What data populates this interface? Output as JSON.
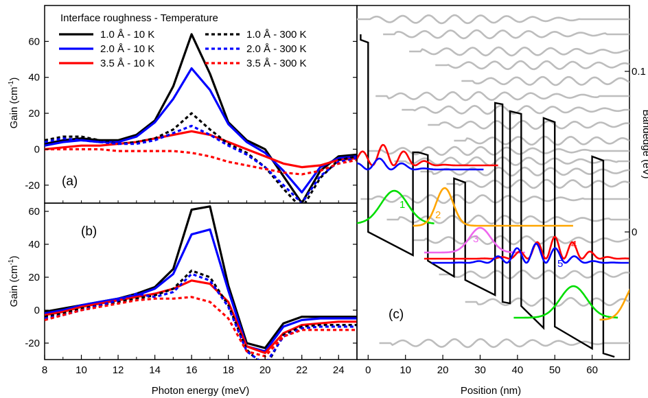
{
  "chart_data": [
    {
      "type": "line",
      "panel_label": "(a)",
      "xlabel": "",
      "ylabel": "Gain (cm<sup>-1</sup>)",
      "ylabel_text": "Gain (cm",
      "ylabel_sup": "-1",
      "ylabel_close": ")",
      "xlim": [
        8,
        25
      ],
      "ylim": [
        -30,
        80
      ],
      "yticks": [
        -20,
        0,
        20,
        40,
        60
      ],
      "legend_title": "Interface roughness - Temperature",
      "legend_placement": "top-left",
      "series": [
        {
          "name": "1.0 Å - 10 K",
          "color": "#000000",
          "dash": "solid",
          "x": [
            8,
            9,
            10,
            11,
            12,
            13,
            14,
            15,
            16,
            17,
            18,
            19,
            20,
            21,
            22,
            23,
            24,
            25
          ],
          "y": [
            3,
            5,
            6,
            5,
            5,
            8,
            16,
            35,
            64,
            42,
            15,
            5,
            0,
            -15,
            -30,
            -12,
            -4,
            -3
          ]
        },
        {
          "name": "2.0 Å - 10 K",
          "color": "#0000ff",
          "dash": "solid",
          "x": [
            8,
            9,
            10,
            11,
            12,
            13,
            14,
            15,
            16,
            17,
            18,
            19,
            20,
            21,
            22,
            23,
            24,
            25
          ],
          "y": [
            2,
            4,
            5,
            4,
            4,
            7,
            15,
            28,
            45,
            33,
            14,
            4,
            -2,
            -12,
            -24,
            -10,
            -5,
            -4
          ]
        },
        {
          "name": "3.5 Å - 10 K",
          "color": "#ff0000",
          "dash": "solid",
          "x": [
            8,
            9,
            10,
            11,
            12,
            13,
            14,
            15,
            16,
            17,
            18,
            19,
            20,
            21,
            22,
            23,
            24,
            25
          ],
          "y": [
            0,
            1,
            2,
            2,
            3,
            4,
            6,
            8,
            10,
            8,
            4,
            0,
            -4,
            -8,
            -10,
            -9,
            -6,
            -5
          ]
        },
        {
          "name": "1.0 Å - 300 K",
          "color": "#000000",
          "dash": "dashed",
          "x": [
            8,
            9,
            10,
            11,
            12,
            13,
            14,
            15,
            16,
            17,
            18,
            19,
            20,
            21,
            22,
            23,
            24,
            25
          ],
          "y": [
            5,
            7,
            7,
            5,
            3,
            4,
            6,
            11,
            20,
            11,
            3,
            -2,
            -10,
            -22,
            -33,
            -16,
            -6,
            -4
          ]
        },
        {
          "name": "2.0 Å - 300 K",
          "color": "#0000ff",
          "dash": "dashed",
          "x": [
            8,
            9,
            10,
            11,
            12,
            13,
            14,
            15,
            16,
            17,
            18,
            19,
            20,
            21,
            22,
            23,
            24,
            25
          ],
          "y": [
            4,
            6,
            5,
            4,
            3,
            3,
            5,
            9,
            13,
            8,
            2,
            -3,
            -10,
            -20,
            -30,
            -15,
            -7,
            -5
          ]
        },
        {
          "name": "3.5 Å - 300 K",
          "color": "#ff0000",
          "dash": "dashed",
          "x": [
            8,
            9,
            10,
            11,
            12,
            13,
            14,
            15,
            16,
            17,
            18,
            19,
            20,
            21,
            22,
            23,
            24,
            25
          ],
          "y": [
            0,
            0,
            0,
            0,
            -1,
            -1,
            -1,
            -1,
            -2,
            -4,
            -7,
            -9,
            -11,
            -13,
            -14,
            -12,
            -8,
            -6
          ]
        }
      ]
    },
    {
      "type": "line",
      "panel_label": "(b)",
      "xlabel": "Photon energy (meV)",
      "ylabel_text": "Gain (cm",
      "ylabel_sup": "-1",
      "ylabel_close": ")",
      "xlim": [
        8,
        25
      ],
      "xticks": [
        8,
        10,
        12,
        14,
        16,
        18,
        20,
        22,
        24
      ],
      "ylim": [
        -30,
        65
      ],
      "yticks": [
        -20,
        0,
        20,
        40,
        60
      ],
      "series": [
        {
          "name": "1.0 Å - 10 K",
          "color": "#000000",
          "dash": "solid",
          "x": [
            8,
            9,
            10,
            11,
            12,
            13,
            14,
            15,
            16,
            17,
            18,
            19,
            20,
            21,
            22,
            23,
            24,
            25
          ],
          "y": [
            -1,
            1,
            3,
            5,
            7,
            10,
            14,
            25,
            61,
            63,
            15,
            -20,
            -23,
            -8,
            -4,
            -4,
            -4,
            -4
          ]
        },
        {
          "name": "2.0 Å - 10 K",
          "color": "#0000ff",
          "dash": "solid",
          "x": [
            8,
            9,
            10,
            11,
            12,
            13,
            14,
            15,
            16,
            17,
            18,
            19,
            20,
            21,
            22,
            23,
            24,
            25
          ],
          "y": [
            -2,
            0,
            3,
            5,
            7,
            9,
            13,
            22,
            46,
            49,
            12,
            -22,
            -25,
            -10,
            -6,
            -5,
            -5,
            -5
          ]
        },
        {
          "name": "3.5 Å - 10 K",
          "color": "#ff0000",
          "dash": "solid",
          "x": [
            8,
            9,
            10,
            11,
            12,
            13,
            14,
            15,
            16,
            17,
            18,
            19,
            20,
            21,
            22,
            23,
            24,
            25
          ],
          "y": [
            -3,
            -1,
            2,
            4,
            6,
            8,
            10,
            13,
            18,
            16,
            5,
            -22,
            -26,
            -14,
            -9,
            -8,
            -7,
            -7
          ]
        },
        {
          "name": "1.0 Å - 300 K",
          "color": "#000000",
          "dash": "dashed",
          "x": [
            8,
            9,
            10,
            11,
            12,
            13,
            14,
            15,
            16,
            17,
            18,
            19,
            20,
            21,
            22,
            23,
            24,
            25
          ],
          "y": [
            -4,
            -2,
            1,
            3,
            5,
            7,
            9,
            13,
            24,
            20,
            3,
            -24,
            -35,
            -15,
            -10,
            -9,
            -9,
            -9
          ]
        },
        {
          "name": "2.0 Å - 300 K",
          "color": "#0000ff",
          "dash": "dashed",
          "x": [
            8,
            9,
            10,
            11,
            12,
            13,
            14,
            15,
            16,
            17,
            18,
            19,
            20,
            21,
            22,
            23,
            24,
            25
          ],
          "y": [
            -5,
            -3,
            0,
            3,
            6,
            10,
            8,
            11,
            22,
            18,
            2,
            -25,
            -33,
            -16,
            -11,
            -10,
            -10,
            -10
          ]
        },
        {
          "name": "3.5 Å - 300 K",
          "color": "#ff0000",
          "dash": "dashed",
          "x": [
            8,
            9,
            10,
            11,
            12,
            13,
            14,
            15,
            16,
            17,
            18,
            19,
            20,
            21,
            22,
            23,
            24,
            25
          ],
          "y": [
            -6,
            -3,
            0,
            2,
            4,
            6,
            7,
            7,
            8,
            5,
            -5,
            -25,
            -28,
            -16,
            -12,
            -12,
            -12,
            -12
          ]
        }
      ]
    },
    {
      "type": "line",
      "panel_label": "(c)",
      "xlabel": "Position (nm)",
      "ylabel": "Bandedge (eV)",
      "xlim": [
        -3,
        70
      ],
      "xticks": [
        0,
        10,
        20,
        30,
        40,
        50,
        60
      ],
      "y2ticks": [
        "0.1",
        "0"
      ],
      "state_labels": [
        {
          "label": "1",
          "color": "#00dd00"
        },
        {
          "label": "2",
          "color": "#ffa500"
        },
        {
          "label": "3",
          "color": "#ee66ee"
        },
        {
          "label": "4",
          "color": "#ff0000"
        },
        {
          "label": "5",
          "color": "#0000ff"
        }
      ]
    }
  ]
}
